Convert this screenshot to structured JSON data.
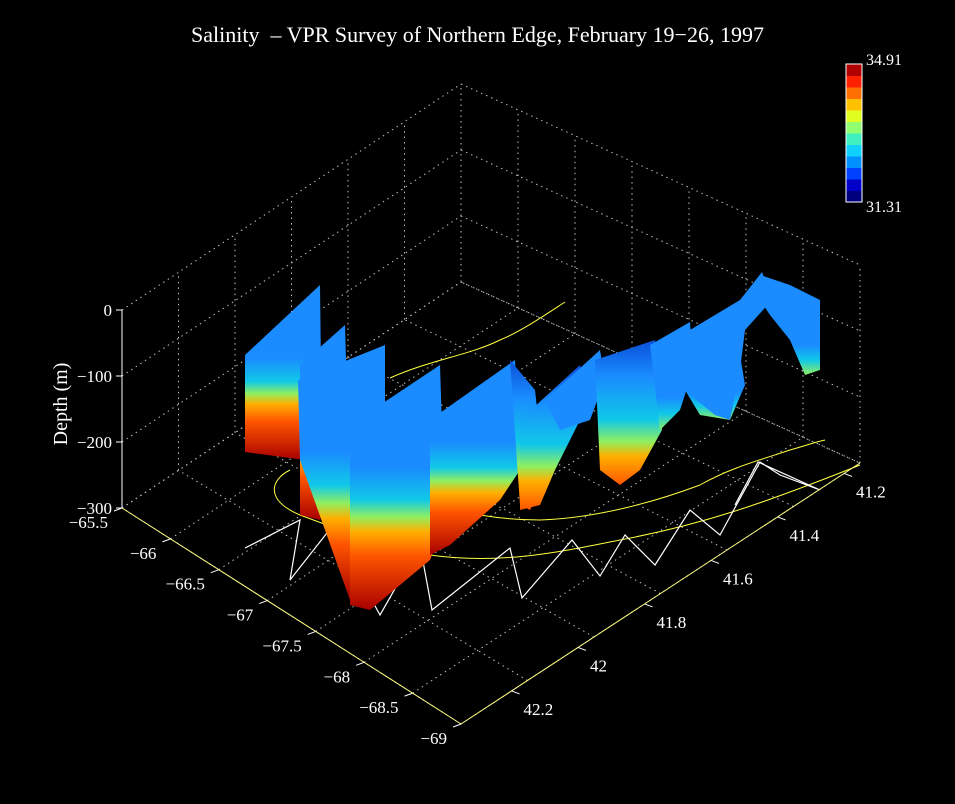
{
  "chart_data": {
    "type": "3d-surface",
    "title": "Salinity  – VPR Survey of Northern Edge, February 19−26, 1997",
    "zlabel": "Depth (m)",
    "xlabel": "",
    "ylabel": "",
    "x_ticks": [
      "−65.5",
      "−66",
      "−66.5",
      "−67",
      "−67.5",
      "−68",
      "−68.5",
      "−69"
    ],
    "y_ticks": [
      "41.2",
      "41.4",
      "41.6",
      "41.8",
      "42",
      "42.2"
    ],
    "z_ticks": [
      "0",
      "−100",
      "−200",
      "−300"
    ],
    "xlim": [
      -69,
      -65.5
    ],
    "ylim": [
      41.1,
      42.3
    ],
    "zlim": [
      -300,
      0
    ],
    "grid": true,
    "colorbar": {
      "min": "31.31",
      "max": "34.91",
      "colors": [
        "#00007f",
        "#0000c8",
        "#0040ff",
        "#0090ff",
        "#10d0ff",
        "#40f0c0",
        "#90ff70",
        "#e0ff20",
        "#ffc000",
        "#ff7000",
        "#ff2000",
        "#b00000"
      ]
    },
    "surface_colors": {
      "surface": "#1a8cff",
      "deep_low": "#0a4fd8",
      "mid": "#10c8e8",
      "transition": "#8ff060",
      "warm": "#ffb000",
      "hot": "#ff5500",
      "deepest": "#a80000"
    },
    "ship_track_color": "#ffffff",
    "isobath_color": "#ffff40"
  }
}
